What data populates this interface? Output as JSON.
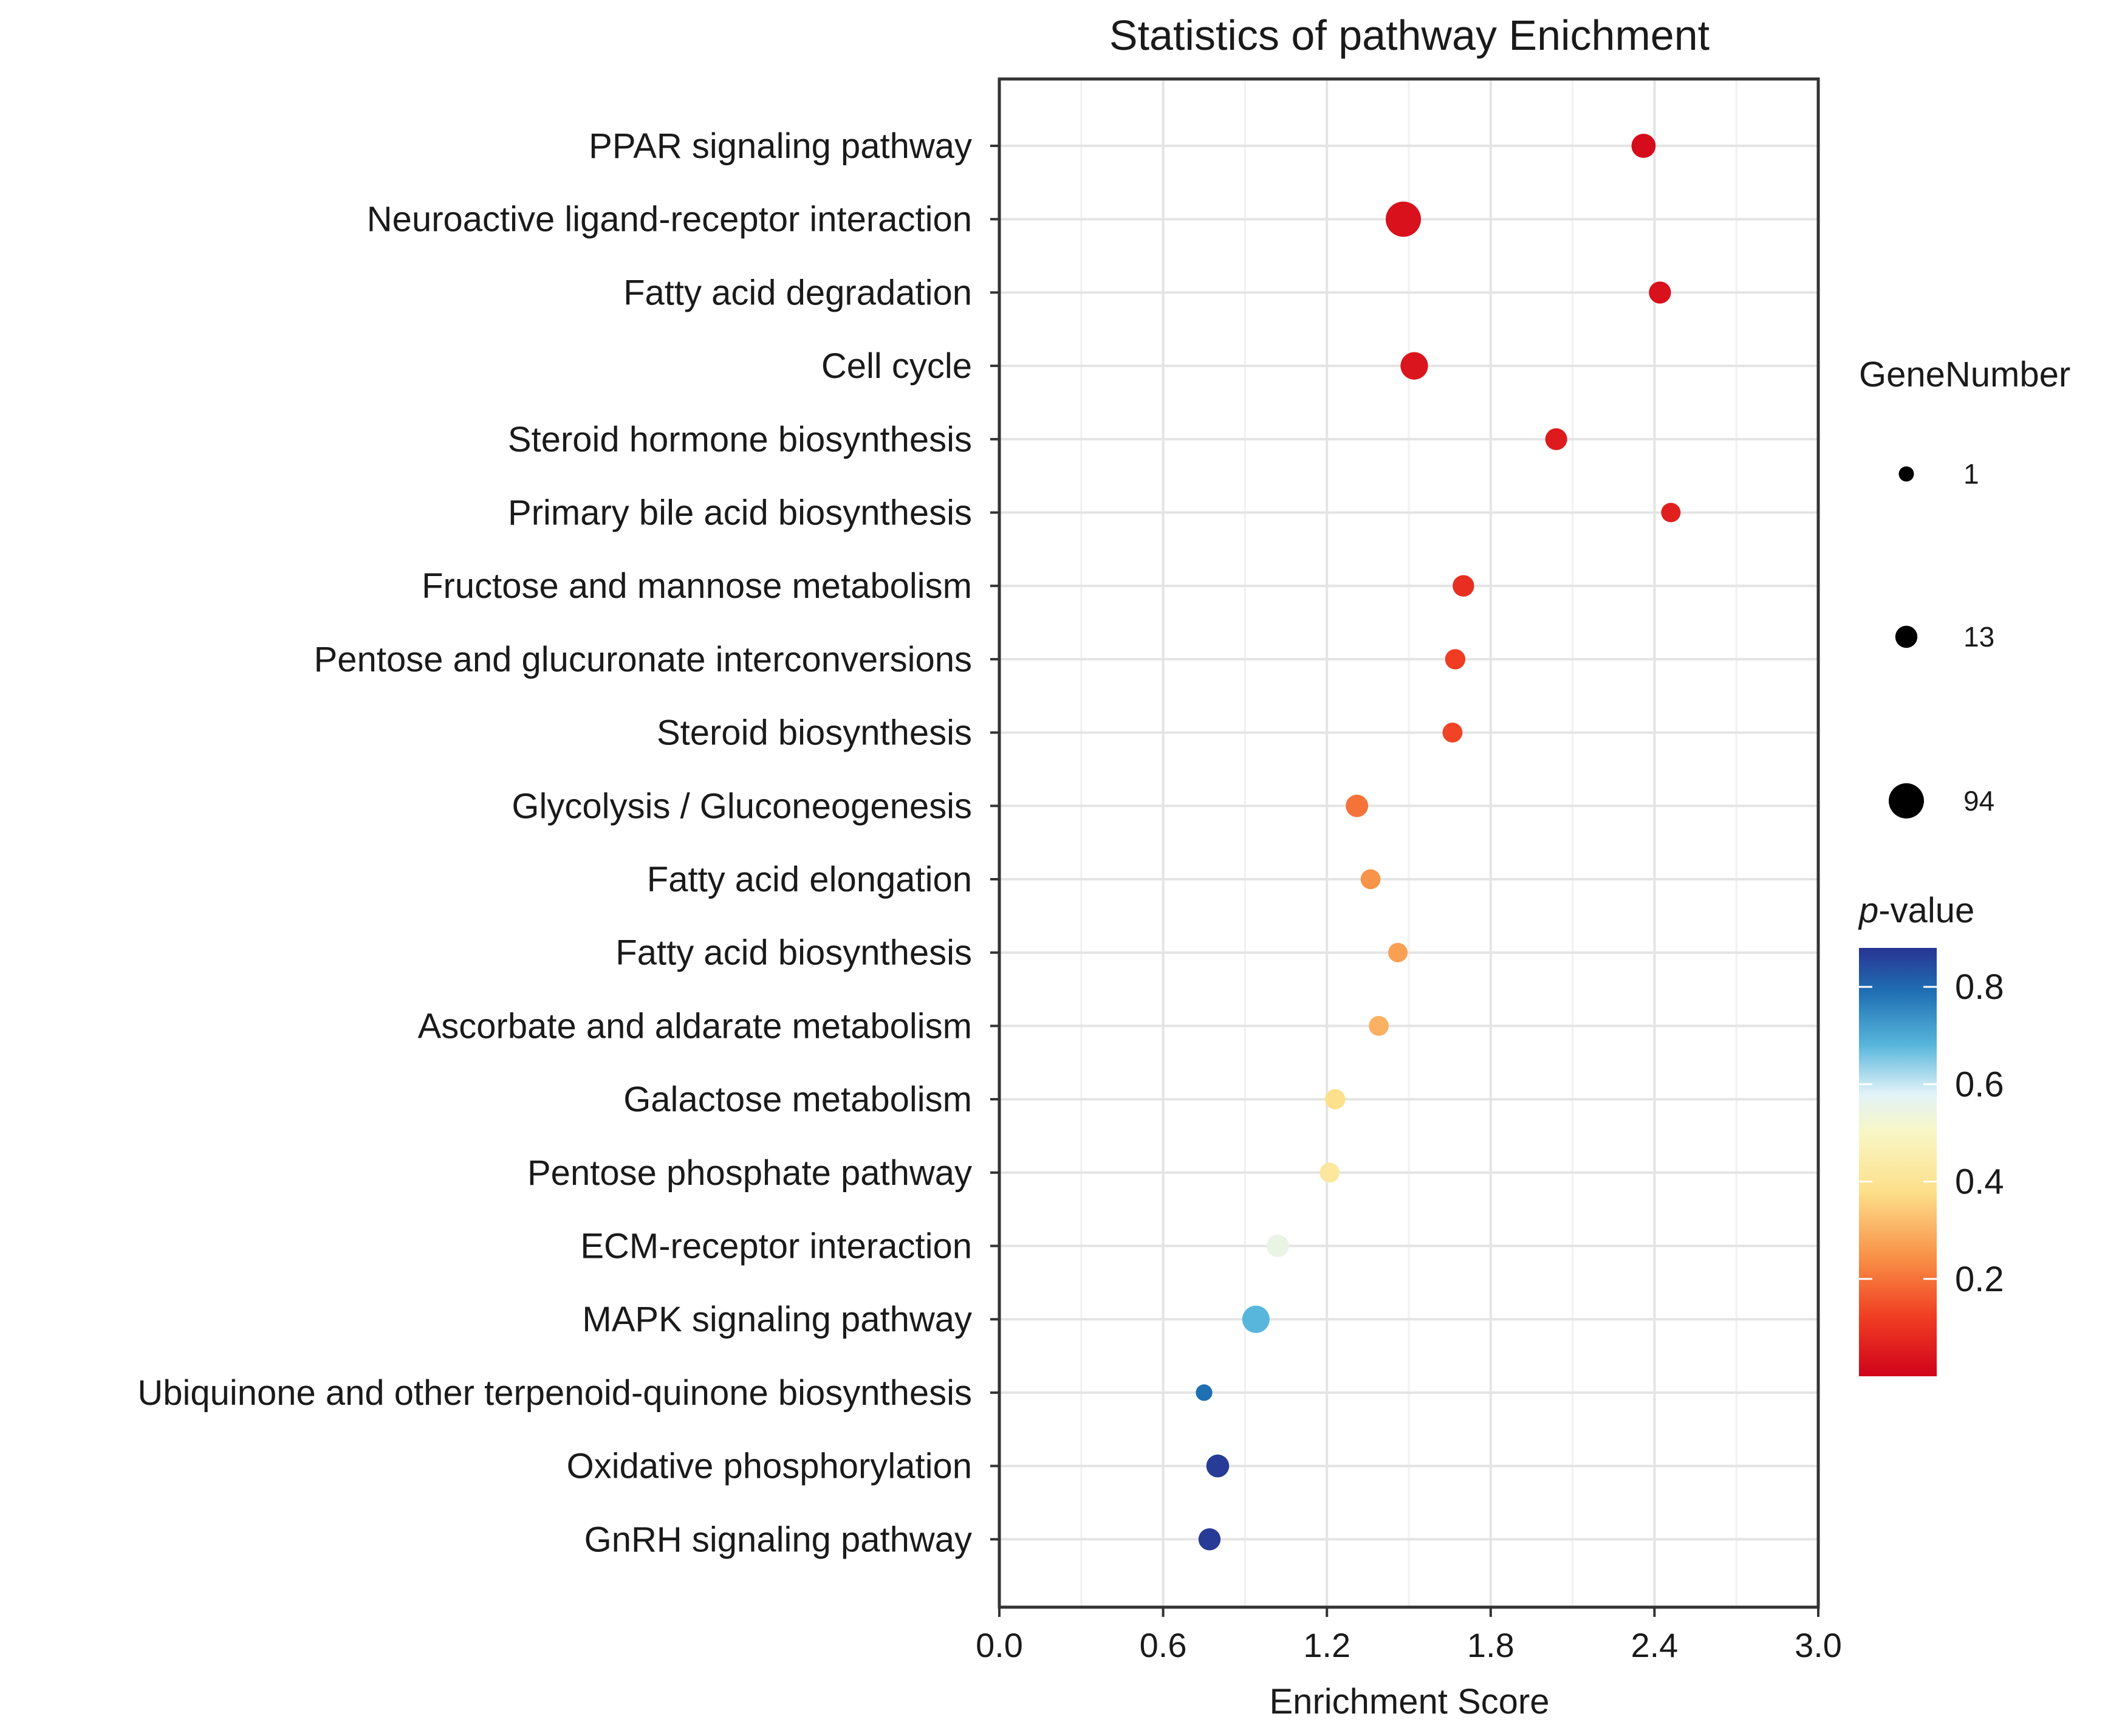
{
  "chart_data": {
    "type": "scatter",
    "title": "Statistics of pathway Enichment",
    "xlabel": "Enrichment Score",
    "ylabel": "",
    "xlim": [
      0.0,
      3.0
    ],
    "xticks": [
      "0.0",
      "0.6",
      "1.2",
      "1.8",
      "2.4",
      "3.0"
    ],
    "grid": true,
    "points": [
      {
        "pathway": "PPAR signaling pathway",
        "enrichment_score": 2.36,
        "gene_number": 20,
        "p_value": 0.02
      },
      {
        "pathway": "Neuroactive ligand-receptor interaction",
        "enrichment_score": 1.48,
        "gene_number": 94,
        "p_value": 0.03
      },
      {
        "pathway": "Fatty acid degradation",
        "enrichment_score": 2.42,
        "gene_number": 13,
        "p_value": 0.03
      },
      {
        "pathway": "Cell cycle",
        "enrichment_score": 1.52,
        "gene_number": 36,
        "p_value": 0.04
      },
      {
        "pathway": "Steroid hormone biosynthesis",
        "enrichment_score": 2.04,
        "gene_number": 12,
        "p_value": 0.05
      },
      {
        "pathway": "Primary bile acid biosynthesis",
        "enrichment_score": 2.46,
        "gene_number": 6,
        "p_value": 0.06
      },
      {
        "pathway": "Fructose and mannose metabolism",
        "enrichment_score": 1.7,
        "gene_number": 11,
        "p_value": 0.09
      },
      {
        "pathway": "Pentose and glucuronate interconversions",
        "enrichment_score": 1.67,
        "gene_number": 8,
        "p_value": 0.12
      },
      {
        "pathway": "Steroid biosynthesis",
        "enrichment_score": 1.66,
        "gene_number": 7,
        "p_value": 0.13
      },
      {
        "pathway": "Glycolysis / Gluconeogenesis",
        "enrichment_score": 1.31,
        "gene_number": 14,
        "p_value": 0.2
      },
      {
        "pathway": "Fatty acid elongation",
        "enrichment_score": 1.36,
        "gene_number": 7,
        "p_value": 0.25
      },
      {
        "pathway": "Fatty acid biosynthesis",
        "enrichment_score": 1.46,
        "gene_number": 6,
        "p_value": 0.27
      },
      {
        "pathway": "Ascorbate and aldarate metabolism",
        "enrichment_score": 1.39,
        "gene_number": 7,
        "p_value": 0.3
      },
      {
        "pathway": "Galactose metabolism",
        "enrichment_score": 1.23,
        "gene_number": 8,
        "p_value": 0.38
      },
      {
        "pathway": "Pentose phosphate pathway",
        "enrichment_score": 1.21,
        "gene_number": 7,
        "p_value": 0.42
      },
      {
        "pathway": "ECM-receptor interaction",
        "enrichment_score": 1.02,
        "gene_number": 14,
        "p_value": 0.55
      },
      {
        "pathway": "MAPK signaling pathway",
        "enrichment_score": 0.94,
        "gene_number": 35,
        "p_value": 0.68
      },
      {
        "pathway": "Ubiquinone and other terpenoid-quinone biosynthesis",
        "enrichment_score": 0.75,
        "gene_number": 2,
        "p_value": 0.79
      },
      {
        "pathway": "Oxidative phosphorylation",
        "enrichment_score": 0.8,
        "gene_number": 15,
        "p_value": 0.87
      },
      {
        "pathway": "GnRH signaling pathway",
        "enrichment_score": 0.77,
        "gene_number": 13,
        "p_value": 0.87
      }
    ],
    "size_legend": {
      "title": "GeneNumber",
      "entries": [
        {
          "label": "1",
          "value": 1
        },
        {
          "label": "13",
          "value": 13
        },
        {
          "label": "94",
          "value": 94
        }
      ]
    },
    "color_legend": {
      "title_italic": "p",
      "title_rest": "-value",
      "range": [
        0.0,
        0.88
      ],
      "ticks": [
        "0.8",
        "0.6",
        "0.4",
        "0.2"
      ],
      "tick_values": [
        0.8,
        0.6,
        0.4,
        0.2
      ],
      "gradient_stops": [
        {
          "value": 0.0,
          "color": "#d0021b"
        },
        {
          "value": 0.12,
          "color": "#f03c22"
        },
        {
          "value": 0.24,
          "color": "#f88e45"
        },
        {
          "value": 0.38,
          "color": "#fde08b"
        },
        {
          "value": 0.5,
          "color": "#f8f6c4"
        },
        {
          "value": 0.58,
          "color": "#e2f3f8"
        },
        {
          "value": 0.68,
          "color": "#58b6dc"
        },
        {
          "value": 0.79,
          "color": "#1f6fb3"
        },
        {
          "value": 0.88,
          "color": "#283493"
        }
      ]
    }
  }
}
